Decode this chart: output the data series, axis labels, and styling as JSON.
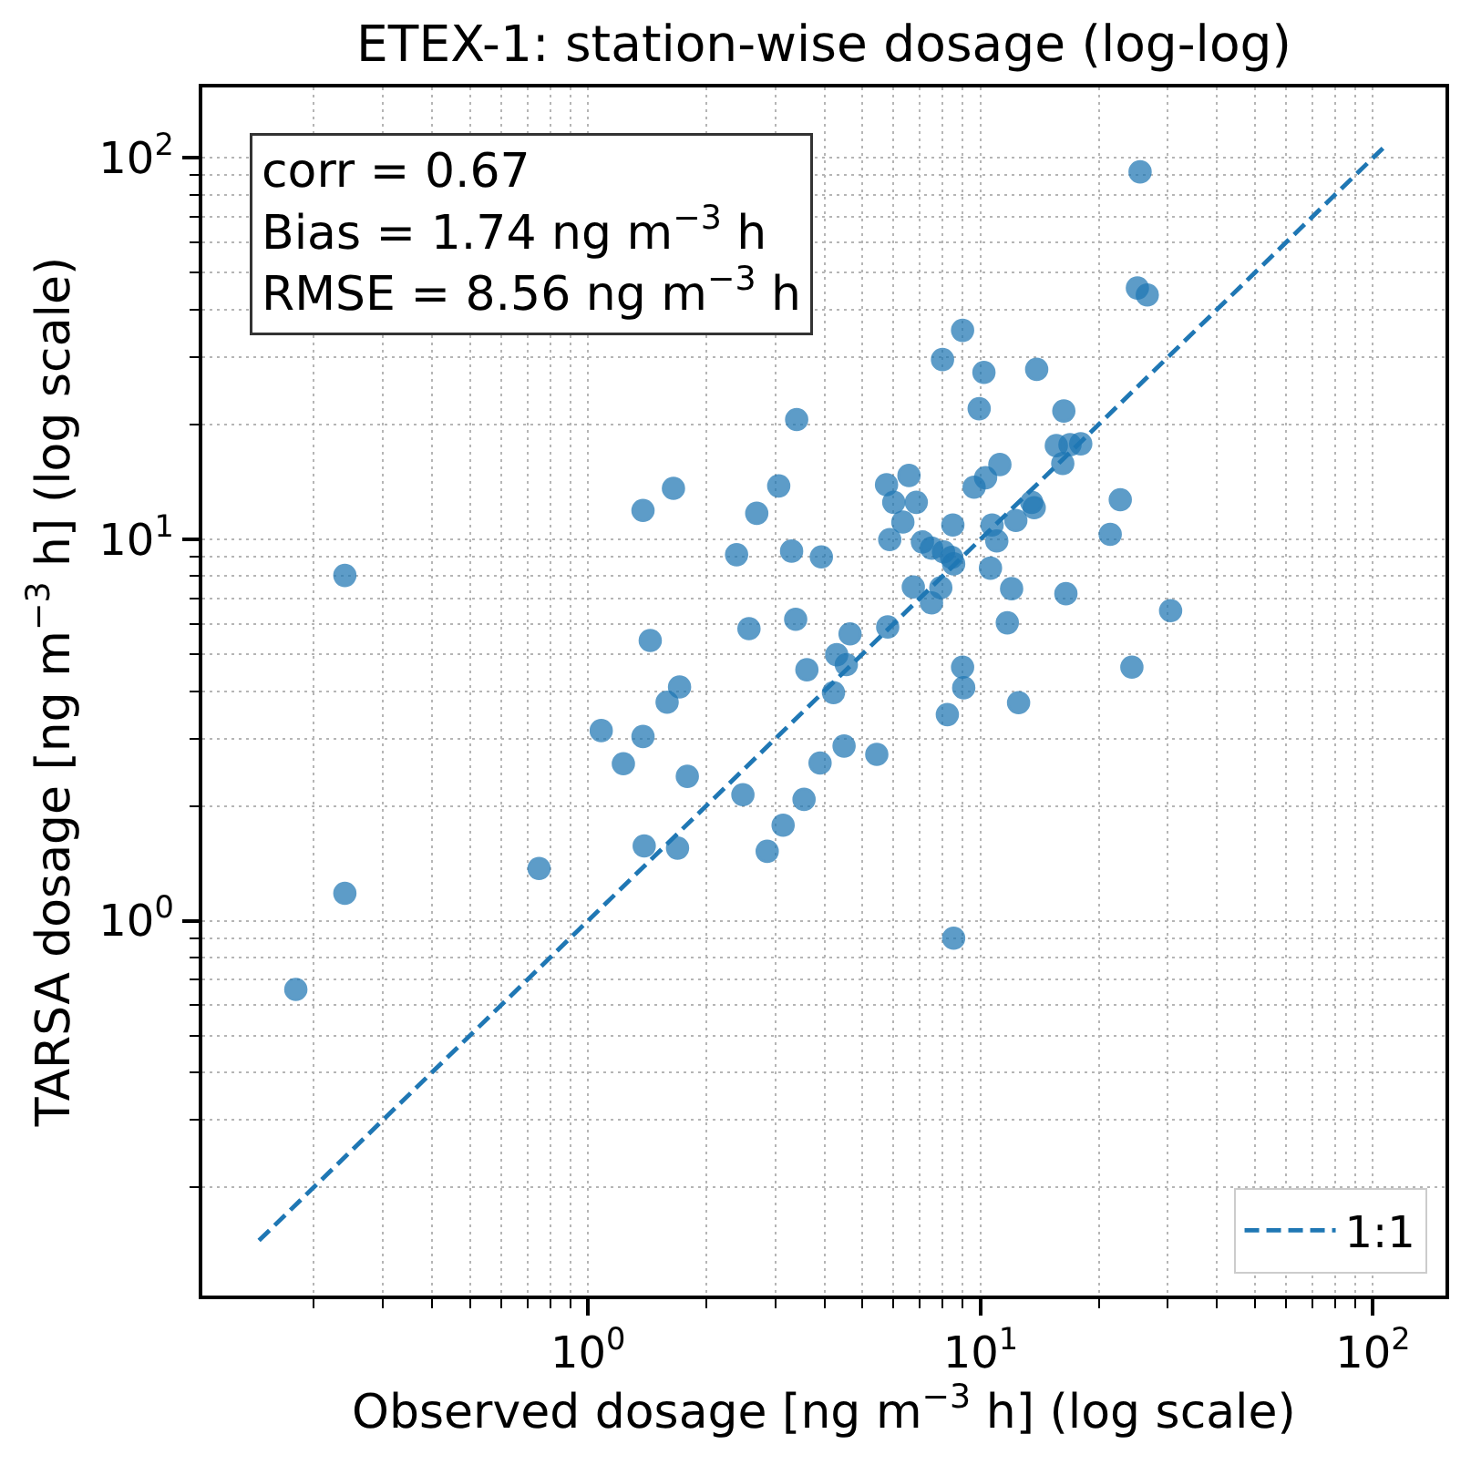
{
  "chart_data": {
    "type": "scatter",
    "title": "ETEX-1: station-wise dosage (log-log)",
    "xlabel": "Observed dosage [ng m$^{−3}$ h] (log scale)",
    "ylabel": "TARSA dosage [ng m$^{−3}$ h] (log scale)",
    "annotations": [
      "corr = 0.67",
      "Bias = 1.74 ng m$^{−3}$ h",
      "RMSE = 8.56 ng m$^{−3}$ h"
    ],
    "series": [
      {
        "color": "#1f77b4",
        "marker": "circle",
        "x": [
          0.24,
          0.24,
          0.18,
          0.75,
          1.08,
          1.23,
          1.38,
          1.39,
          1.38,
          1.44,
          1.65,
          1.59,
          1.71,
          1.79,
          1.69,
          2.39,
          2.48,
          2.57,
          2.69,
          2.86,
          3.06,
          3.14,
          3.3,
          3.4,
          3.38,
          3.55,
          3.61,
          3.9,
          3.93,
          4.22,
          4.3,
          4.49,
          4.55,
          4.65,
          5.44,
          5.8,
          5.76,
          5.87,
          6.01,
          6.34,
          6.57,
          6.74,
          6.86,
          7.11,
          7.5,
          7.5,
          7.92,
          8.0,
          8.05,
          8.23,
          8.44,
          8.5,
          8.54,
          8.54,
          9.0,
          9.0,
          9.06,
          9.63,
          9.92,
          10.2,
          10.3,
          10.6,
          10.7,
          11.0,
          11.2,
          11.7,
          12.0,
          12.3,
          12.5,
          13.5,
          13.7,
          13.9,
          15.6,
          16.3,
          16.2,
          16.9,
          18.0,
          16.5,
          21.4,
          22.7,
          24.3,
          25.1,
          26.6,
          25.5,
          30.5
        ],
        "values": [
          8.04,
          1.18,
          0.66,
          1.37,
          3.15,
          2.58,
          3.04,
          1.57,
          11.9,
          5.43,
          13.6,
          3.74,
          4.1,
          2.39,
          1.55,
          9.11,
          2.14,
          5.83,
          11.7,
          1.52,
          13.8,
          1.78,
          9.31,
          20.6,
          6.17,
          2.08,
          4.55,
          2.59,
          8.99,
          3.96,
          4.98,
          2.87,
          4.69,
          5.65,
          2.73,
          5.89,
          13.9,
          9.98,
          12.5,
          11.1,
          14.7,
          7.5,
          12.5,
          9.84,
          9.48,
          6.81,
          7.47,
          29.6,
          9.27,
          3.47,
          8.97,
          10.9,
          8.62,
          0.9,
          35.3,
          4.62,
          4.08,
          13.7,
          22.0,
          27.4,
          14.5,
          8.4,
          10.9,
          9.9,
          15.7,
          6.04,
          7.42,
          11.2,
          3.73,
          12.5,
          12.1,
          27.9,
          17.6,
          21.7,
          15.8,
          17.7,
          17.8,
          7.2,
          10.3,
          12.7,
          4.62,
          45.6,
          43.7,
          91.9,
          6.5
        ]
      },
      {
        "type": "line",
        "name": "1:1",
        "color": "#1f77b4",
        "line_style": "dashed",
        "x": [
          0.145,
          106
        ],
        "values": [
          0.145,
          106
        ]
      }
    ],
    "xlim": [
      0.104,
      153
    ],
    "ylim": [
      0.104,
      153
    ],
    "log": "xy",
    "xticks": [
      {
        "value": 0.2,
        "label": null
      },
      {
        "value": 0.3,
        "label": null
      },
      {
        "value": 0.4,
        "label": null
      },
      {
        "value": 0.5,
        "label": null
      },
      {
        "value": 0.6,
        "label": null
      },
      {
        "value": 0.7,
        "label": null
      },
      {
        "value": 0.8,
        "label": null
      },
      {
        "value": 0.9,
        "label": null
      },
      {
        "value": 1,
        "label": "10$^{0}$"
      },
      {
        "value": 2,
        "label": null
      },
      {
        "value": 3,
        "label": null
      },
      {
        "value": 4,
        "label": null
      },
      {
        "value": 5,
        "label": null
      },
      {
        "value": 6,
        "label": null
      },
      {
        "value": 7,
        "label": null
      },
      {
        "value": 8,
        "label": null
      },
      {
        "value": 9,
        "label": null
      },
      {
        "value": 10,
        "label": "10$^{1}$"
      },
      {
        "value": 20,
        "label": null
      },
      {
        "value": 30,
        "label": null
      },
      {
        "value": 40,
        "label": null
      },
      {
        "value": 50,
        "label": null
      },
      {
        "value": 60,
        "label": null
      },
      {
        "value": 70,
        "label": null
      },
      {
        "value": 80,
        "label": null
      },
      {
        "value": 90,
        "label": null
      },
      {
        "value": 100,
        "label": "10$^{2}$"
      }
    ],
    "yticks": [
      {
        "value": 0.2,
        "label": null
      },
      {
        "value": 0.3,
        "label": null
      },
      {
        "value": 0.4,
        "label": null
      },
      {
        "value": 0.5,
        "label": null
      },
      {
        "value": 0.6,
        "label": null
      },
      {
        "value": 0.7,
        "label": null
      },
      {
        "value": 0.8,
        "label": null
      },
      {
        "value": 0.9,
        "label": null
      },
      {
        "value": 1,
        "label": "10$^{0}$"
      },
      {
        "value": 2,
        "label": null
      },
      {
        "value": 3,
        "label": null
      },
      {
        "value": 4,
        "label": null
      },
      {
        "value": 5,
        "label": null
      },
      {
        "value": 6,
        "label": null
      },
      {
        "value": 7,
        "label": null
      },
      {
        "value": 8,
        "label": null
      },
      {
        "value": 9,
        "label": null
      },
      {
        "value": 10,
        "label": "10$^{1}$"
      },
      {
        "value": 20,
        "label": null
      },
      {
        "value": 30,
        "label": null
      },
      {
        "value": 40,
        "label": null
      },
      {
        "value": 50,
        "label": null
      },
      {
        "value": 60,
        "label": null
      },
      {
        "value": 70,
        "label": null
      },
      {
        "value": 80,
        "label": null
      },
      {
        "value": 90,
        "label": null
      },
      {
        "value": 100,
        "label": "10$^{2}$"
      }
    ],
    "grid": true,
    "legend": "bottom right"
  }
}
